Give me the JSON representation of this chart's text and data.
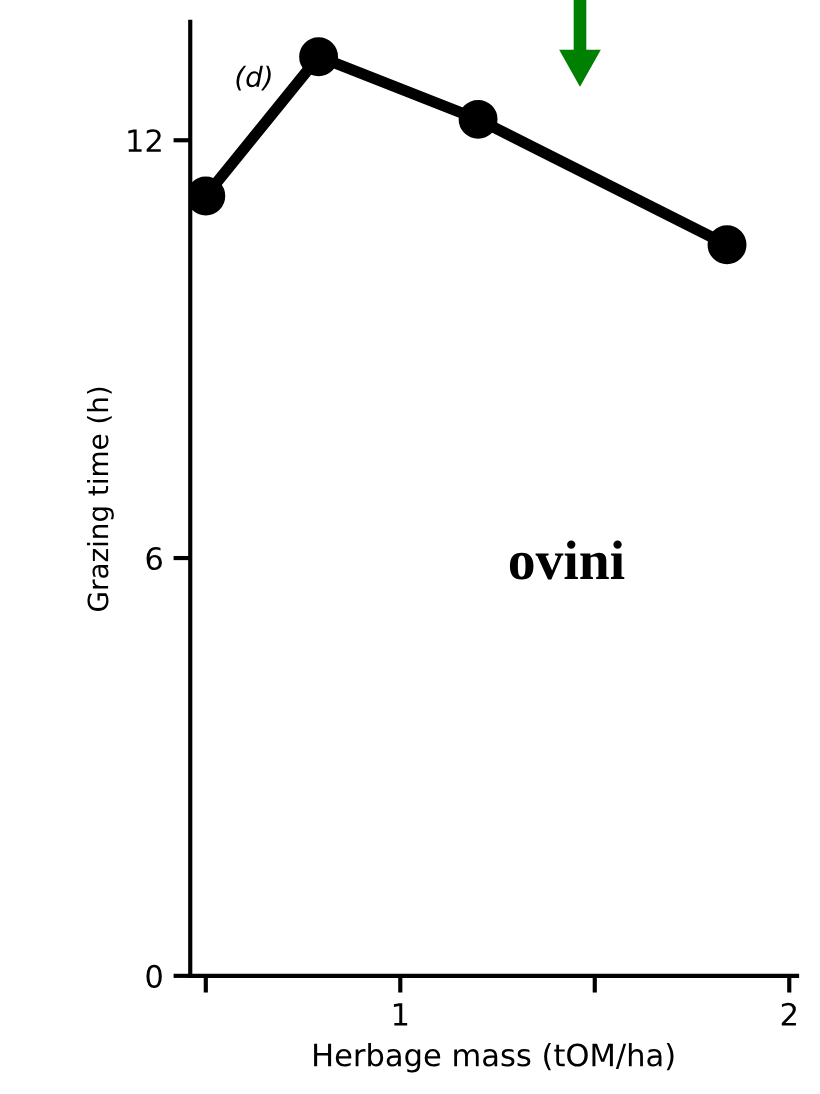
{
  "chart_data": {
    "type": "line",
    "xlabel": "Herbage mass (tOM/ha)",
    "ylabel": "Grazing time (h)",
    "x": [
      0.5,
      0.79,
      1.2,
      1.84
    ],
    "series": [
      {
        "color": "#000000",
        "values": [
          11.2,
          13.2,
          12.3,
          10.5
        ]
      }
    ],
    "xlim": [
      0.46,
      2.02
    ],
    "ylim": [
      0,
      13.7
    ],
    "xticks": [
      {
        "value": 0.5,
        "label": null
      },
      1,
      {
        "value": 1.5,
        "label": null
      },
      2
    ],
    "yticks": [
      0,
      6,
      12
    ],
    "marker": "circle",
    "line_style": "solid",
    "grid": false,
    "legend": false,
    "annotations": [
      "(d)",
      "ovini"
    ]
  }
}
